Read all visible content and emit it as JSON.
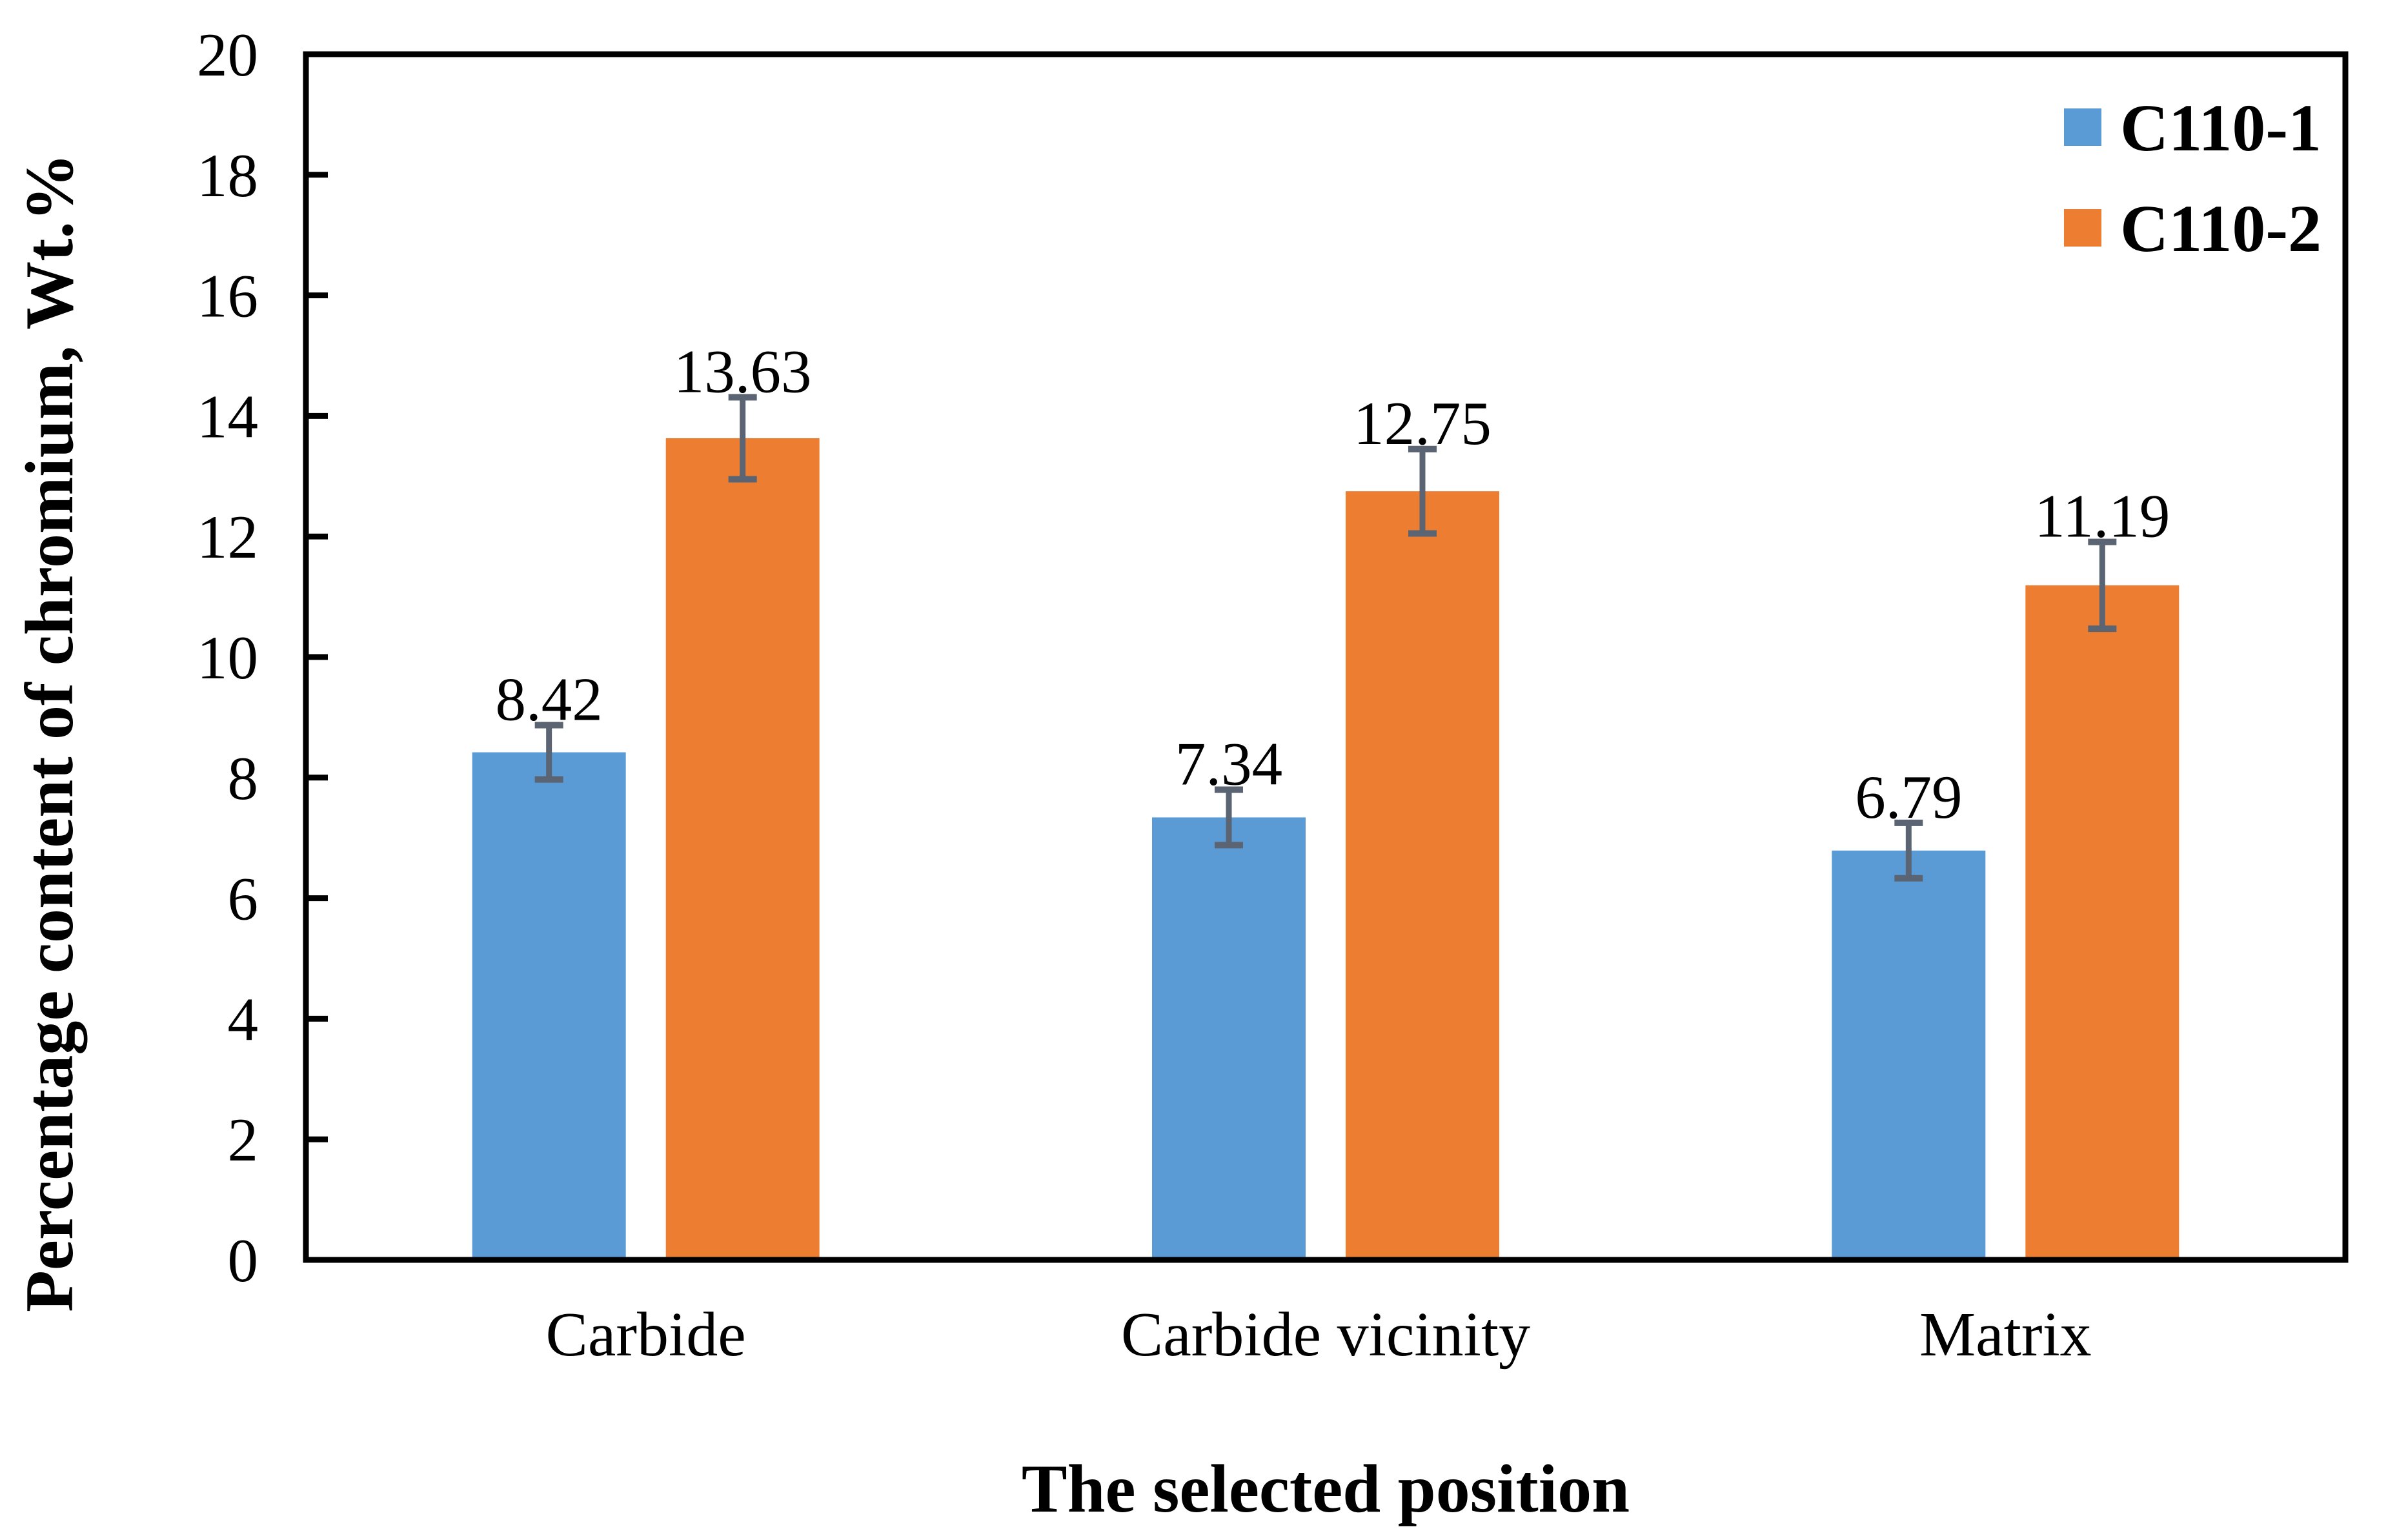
{
  "chart_data": {
    "type": "bar",
    "title": "",
    "xlabel": "The selected position",
    "ylabel": "Percentage content of chromium, Wt.%",
    "categories": [
      "Carbide",
      "Carbide vicinity",
      "Matrix"
    ],
    "series": [
      {
        "name": "C110-1",
        "color": "#5B9BD5",
        "values": [
          8.42,
          7.34,
          6.79
        ],
        "errors": [
          0.45,
          0.46,
          0.46
        ]
      },
      {
        "name": "C110-2",
        "color": "#ED7D31",
        "values": [
          13.63,
          12.75,
          11.19
        ],
        "errors": [
          0.68,
          0.7,
          0.72
        ]
      }
    ],
    "data_labels": {
      "decimals": 2
    },
    "ylim": [
      0,
      20
    ],
    "yticks": [
      0,
      2,
      4,
      6,
      8,
      10,
      12,
      14,
      16,
      18,
      20
    ],
    "grid": false,
    "legend_position": "top-right-inside",
    "colors": {
      "axis": "#000000",
      "error_bar": "#5A6472",
      "background": "#FFFFFF"
    }
  }
}
